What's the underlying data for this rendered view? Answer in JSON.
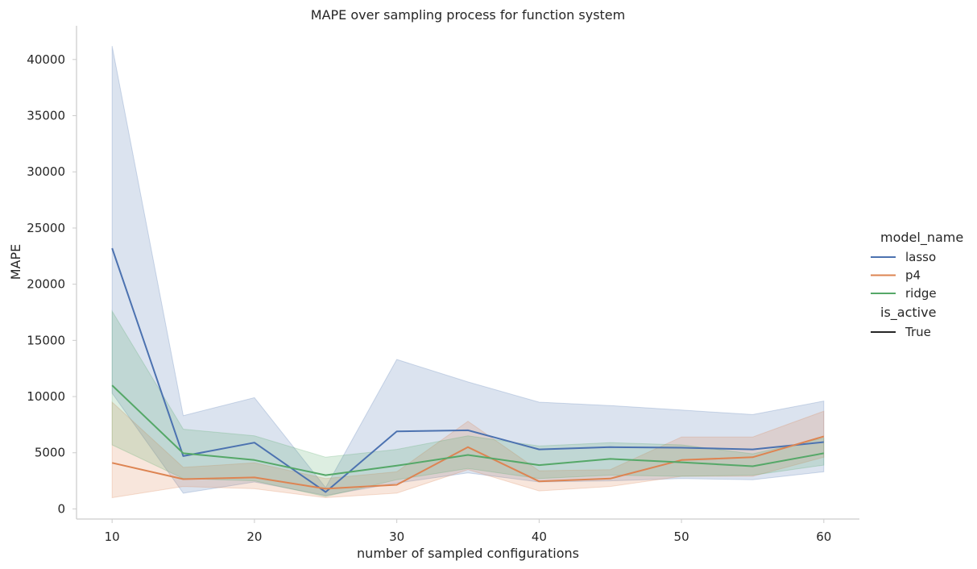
{
  "chart_data": {
    "type": "line",
    "title": "MAPE over sampling process for function system",
    "xlabel": "number of sampled configurations",
    "ylabel": "MAPE",
    "x": [
      10,
      15,
      20,
      25,
      30,
      35,
      40,
      45,
      50,
      55,
      60
    ],
    "xticks": [
      "10",
      "20",
      "30",
      "40",
      "50",
      "60"
    ],
    "yticks": [
      "0",
      "5000",
      "10000",
      "15000",
      "20000",
      "25000",
      "30000",
      "35000",
      "40000"
    ],
    "xlim": [
      7.5,
      62.5
    ],
    "ylim": [
      -900,
      43000
    ],
    "grid": false,
    "legend": {
      "placement": "right",
      "hue_title": "model_name",
      "style_title": "is_active",
      "style_entries": [
        {
          "label": "True",
          "color": "#262626"
        }
      ]
    },
    "series": [
      {
        "name": "lasso",
        "color": "#4c72b0",
        "values": [
          23200,
          4700,
          5900,
          1500,
          6900,
          7000,
          5300,
          5500,
          5450,
          5300,
          5950
        ],
        "ci_low": [
          10300,
          1400,
          2400,
          1200,
          2300,
          3200,
          2400,
          2500,
          2700,
          2600,
          3300
        ],
        "ci_high": [
          41200,
          8300,
          9900,
          1900,
          13300,
          11300,
          9500,
          9200,
          8800,
          8400,
          9600
        ]
      },
      {
        "name": "p4",
        "color": "#dd8452",
        "values": [
          4100,
          2650,
          2800,
          1800,
          2150,
          5500,
          2450,
          2700,
          4350,
          4600,
          6450
        ],
        "ci_low": [
          1000,
          2000,
          1800,
          1000,
          1400,
          3500,
          1600,
          2000,
          2900,
          2900,
          4600
        ],
        "ci_high": [
          9500,
          3700,
          4100,
          2700,
          3300,
          7800,
          3400,
          3500,
          6400,
          6400,
          8700
        ]
      },
      {
        "name": "ridge",
        "color": "#55a868",
        "values": [
          11000,
          4950,
          4350,
          3000,
          3850,
          4800,
          3900,
          4450,
          4150,
          3800,
          4950
        ],
        "ci_low": [
          5700,
          2700,
          2500,
          1100,
          2600,
          3600,
          2700,
          3000,
          2900,
          3000,
          3900
        ],
        "ci_high": [
          17600,
          7100,
          6500,
          4600,
          5300,
          6500,
          5600,
          5900,
          5700,
          4900,
          6300
        ]
      }
    ]
  }
}
